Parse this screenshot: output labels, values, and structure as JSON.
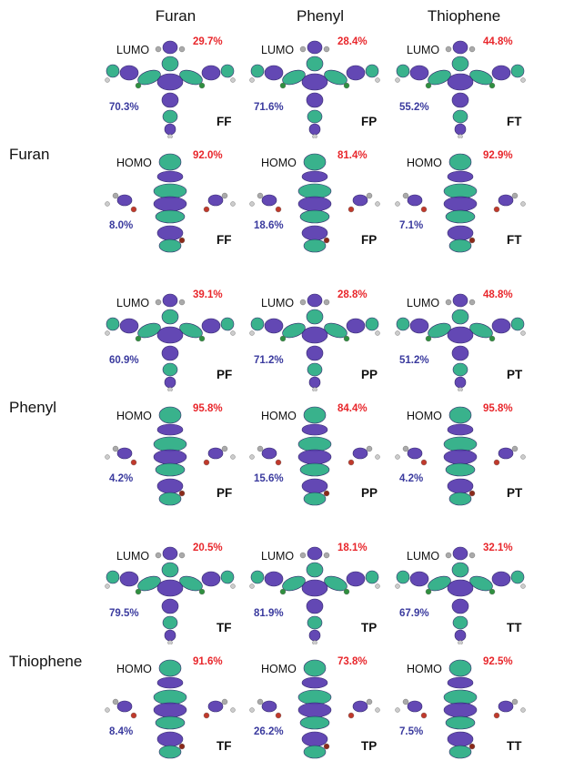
{
  "columns": [
    "Furan",
    "Phenyl",
    "Thiophene"
  ],
  "rows": [
    "Furan",
    "Phenyl",
    "Thiophene"
  ],
  "orbital_labels": {
    "lumo": "LUMO",
    "homo": "HOMO"
  },
  "colors": {
    "top_percent": "#e8262b",
    "bottom_percent": "#3a3a9e",
    "lobe_purple": "#5b3fb0",
    "lobe_green": "#2fae86"
  },
  "panels": [
    [
      {
        "lumo": {
          "top": "29.7%",
          "bottom": "70.3%",
          "code": "FF"
        },
        "homo": {
          "top": "92.0%",
          "bottom": "8.0%",
          "code": "FF"
        }
      },
      {
        "lumo": {
          "top": "28.4%",
          "bottom": "71.6%",
          "code": "FP"
        },
        "homo": {
          "top": "81.4%",
          "bottom": "18.6%",
          "code": "FP"
        }
      },
      {
        "lumo": {
          "top": "44.8%",
          "bottom": "55.2%",
          "code": "FT"
        },
        "homo": {
          "top": "92.9%",
          "bottom": "7.1%",
          "code": "FT"
        }
      }
    ],
    [
      {
        "lumo": {
          "top": "39.1%",
          "bottom": "60.9%",
          "code": "PF"
        },
        "homo": {
          "top": "95.8%",
          "bottom": "4.2%",
          "code": "PF"
        }
      },
      {
        "lumo": {
          "top": "28.8%",
          "bottom": "71.2%",
          "code": "PP"
        },
        "homo": {
          "top": "84.4%",
          "bottom": "15.6%",
          "code": "PP"
        }
      },
      {
        "lumo": {
          "top": "48.8%",
          "bottom": "51.2%",
          "code": "PT"
        },
        "homo": {
          "top": "95.8%",
          "bottom": "4.2%",
          "code": "PT"
        }
      }
    ],
    [
      {
        "lumo": {
          "top": "20.5%",
          "bottom": "79.5%",
          "code": "TF"
        },
        "homo": {
          "top": "91.6%",
          "bottom": "8.4%",
          "code": "TF"
        }
      },
      {
        "lumo": {
          "top": "18.1%",
          "bottom": "81.9%",
          "code": "TP"
        },
        "homo": {
          "top": "73.8%",
          "bottom": "26.2%",
          "code": "TP"
        }
      },
      {
        "lumo": {
          "top": "32.1%",
          "bottom": "67.9%",
          "code": "TT"
        },
        "homo": {
          "top": "92.5%",
          "bottom": "7.5%",
          "code": "TT"
        }
      }
    ]
  ]
}
